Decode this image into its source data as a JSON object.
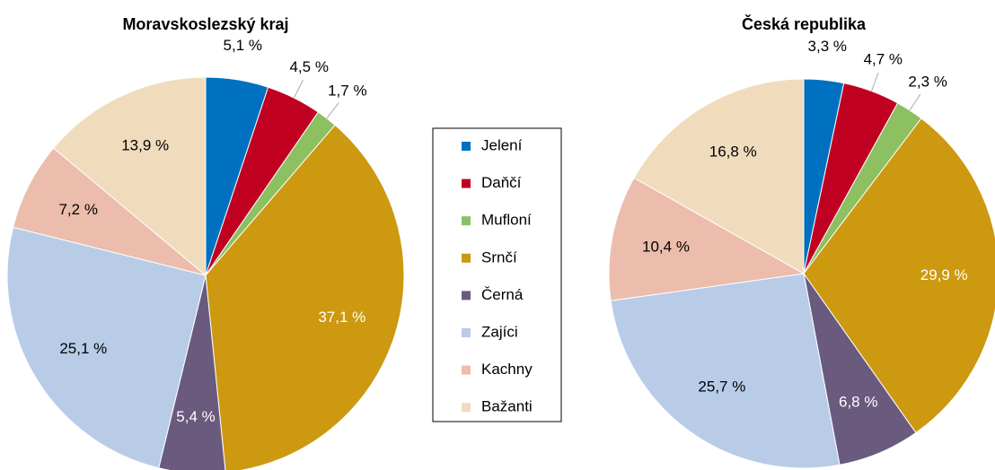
{
  "chart_data": [
    {
      "type": "pie",
      "title": "Moravskoslezský kraj",
      "values": [
        5.1,
        4.5,
        1.7,
        37.1,
        5.4,
        25.1,
        7.2,
        13.9
      ],
      "value_labels": [
        "5,1 %",
        "4,5 %",
        "1,7 %",
        "37,1 %",
        "5,4 %",
        "25,1 %",
        "7,2 %",
        "13,9 %"
      ]
    },
    {
      "type": "pie",
      "title": "Česká republika",
      "values": [
        3.3,
        4.7,
        2.3,
        29.9,
        6.8,
        25.7,
        10.4,
        16.8
      ],
      "value_labels": [
        "3,3 %",
        "4,7 %",
        "2,3 %",
        "29,9 %",
        "6,8 %",
        "25,7 %",
        "10,4 %",
        "16,8 %"
      ]
    }
  ],
  "legend": {
    "labels": [
      "Jelení",
      "Daňčí",
      "Mufloní",
      "Srnčí",
      "Černá",
      "Zajíci",
      "Kachny",
      "Bažanti"
    ],
    "colors": [
      "#0070c0",
      "#c00020",
      "#8cc060",
      "#cc9910",
      "#6a5a7e",
      "#b8cce8",
      "#ecbcac",
      "#f0dcbc"
    ]
  }
}
